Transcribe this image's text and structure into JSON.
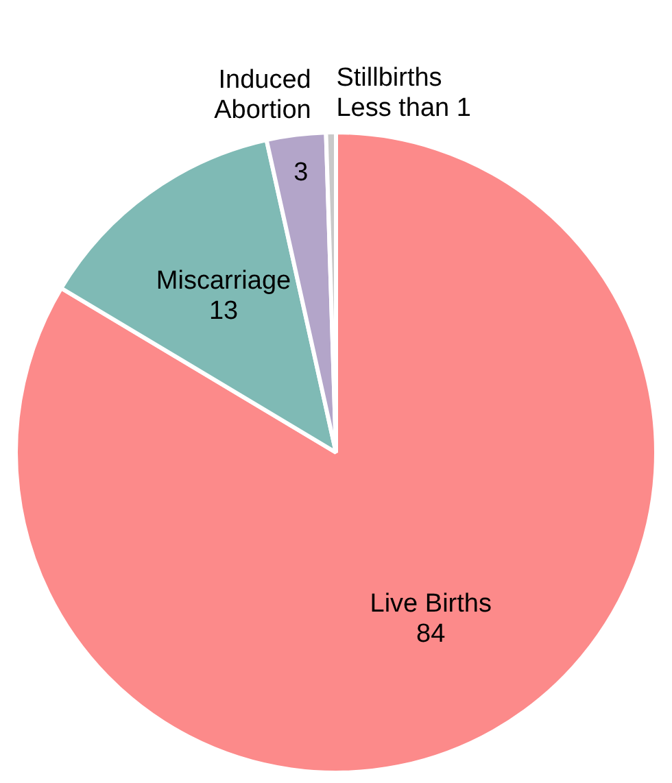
{
  "chart_data": {
    "type": "pie",
    "categories": [
      "Live Births",
      "Miscarriage",
      "Induced Abortion",
      "Stillbirths"
    ],
    "values": [
      84,
      13,
      3,
      0.5
    ],
    "value_labels": [
      "84",
      "13",
      "3",
      "Less than 1"
    ],
    "colors": [
      "#fc8a8a",
      "#7fbab5",
      "#b3a5c9",
      "#c9c9c9"
    ],
    "legend": false
  }
}
